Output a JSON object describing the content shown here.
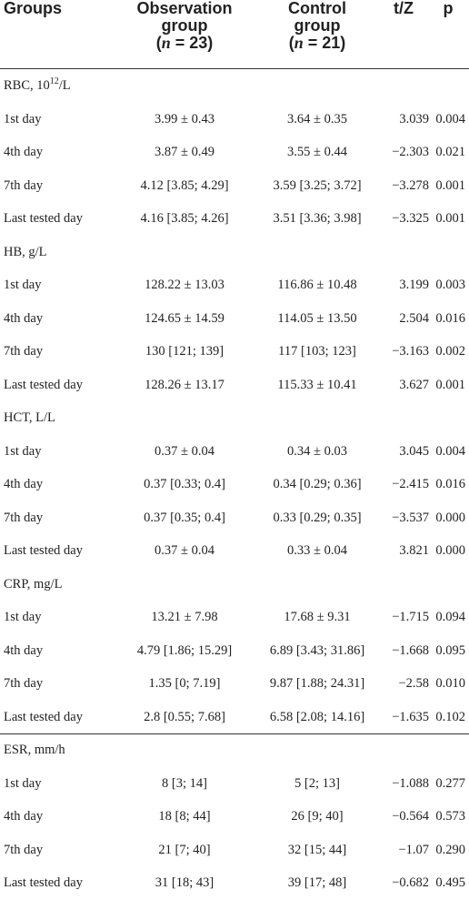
{
  "header": {
    "groups": "Groups",
    "obs_line1": "Observation",
    "obs_line2": "group",
    "obs_n_label": "n",
    "obs_n_value": " = 23)",
    "ctrl_line1": "Control",
    "ctrl_line2": "group",
    "ctrl_n_label": "n",
    "ctrl_n_value": " = 21)",
    "tz": "t/Z",
    "p": "p"
  },
  "sections": [
    {
      "title": "RBC, 10",
      "title_sup": "12",
      "title_suffix": "/L",
      "rows": [
        {
          "day": "1st day",
          "obs": "3.99 ± 0.43",
          "ctrl": "3.64 ± 0.35",
          "tz": "3.039",
          "p": "0.004"
        },
        {
          "day": "4th day",
          "obs": "3.87 ± 0.49",
          "ctrl": "3.55 ± 0.44",
          "tz": "−2.303",
          "p": "0.021"
        },
        {
          "day": "7th day",
          "obs": "4.12 [3.85; 4.29]",
          "ctrl": "3.59 [3.25; 3.72]",
          "tz": "−3.278",
          "p": "0.001"
        },
        {
          "day": "Last tested day",
          "obs": "4.16 [3.85; 4.26]",
          "ctrl": "3.51 [3.36; 3.98]",
          "tz": "−3.325",
          "p": "0.001"
        }
      ]
    },
    {
      "title": "HB, g/L",
      "rows": [
        {
          "day": "1st day",
          "obs": "128.22 ± 13.03",
          "ctrl": "116.86 ± 10.48",
          "tz": "3.199",
          "p": "0.003"
        },
        {
          "day": "4th day",
          "obs": "124.65 ± 14.59",
          "ctrl": "114.05 ± 13.50",
          "tz": "2.504",
          "p": "0.016"
        },
        {
          "day": "7th day",
          "obs": "130 [121; 139]",
          "ctrl": "117 [103; 123]",
          "tz": "−3.163",
          "p": "0.002"
        },
        {
          "day": "Last tested day",
          "obs": "128.26 ± 13.17",
          "ctrl": "115.33 ± 10.41",
          "tz": "3.627",
          "p": "0.001"
        }
      ]
    },
    {
      "title": "HCT, L/L",
      "rows": [
        {
          "day": "1st day",
          "obs": "0.37 ± 0.04",
          "ctrl": "0.34 ± 0.03",
          "tz": "3.045",
          "p": "0.004"
        },
        {
          "day": "4th day",
          "obs": "0.37 [0.33; 0.4]",
          "ctrl": "0.34 [0.29; 0.36]",
          "tz": "−2.415",
          "p": "0.016"
        },
        {
          "day": "7th day",
          "obs": "0.37 [0.35; 0.4]",
          "ctrl": "0.33 [0.29; 0.35]",
          "tz": "−3.537",
          "p": "0.000"
        },
        {
          "day": "Last tested day",
          "obs": "0.37 ± 0.04",
          "ctrl": "0.33 ± 0.04",
          "tz": "3.821",
          "p": "0.000"
        }
      ]
    },
    {
      "title": "CRP, mg/L",
      "rows": [
        {
          "day": "1st day",
          "obs": "13.21 ± 7.98",
          "ctrl": "17.68 ± 9.31",
          "tz": "−1.715",
          "p": "0.094"
        },
        {
          "day": "4th day",
          "obs": "4.79 [1.86; 15.29]",
          "ctrl": "6.89 [3.43; 31.86]",
          "tz": "−1.668",
          "p": "0.095"
        },
        {
          "day": "7th day",
          "obs": "1.35 [0; 7.19]",
          "ctrl": "9.87 [1.88; 24.31]",
          "tz": "−2.58",
          "p": "0.010"
        },
        {
          "day": "Last tested day",
          "obs": "2.8 [0.55; 7.68]",
          "ctrl": "6.58 [2.08; 14.16]",
          "tz": "−1.635",
          "p": "0.102"
        }
      ]
    },
    {
      "title": "ESR, mm/h",
      "rows": [
        {
          "day": "1st day",
          "obs": "8 [3; 14]",
          "ctrl": "5 [2; 13]",
          "tz": "−1.088",
          "p": "0.277"
        },
        {
          "day": "4th day",
          "obs": "18 [8; 44]",
          "ctrl": "26 [9; 40]",
          "tz": "−0.564",
          "p": "0.573"
        },
        {
          "day": "7th day",
          "obs": "21 [7; 40]",
          "ctrl": "32 [15; 44]",
          "tz": "−1.07",
          "p": "0.290"
        },
        {
          "day": "Last tested day",
          "obs": "31 [18; 43]",
          "ctrl": "39 [17; 48]",
          "tz": "−0.682",
          "p": "0.495"
        }
      ]
    }
  ]
}
